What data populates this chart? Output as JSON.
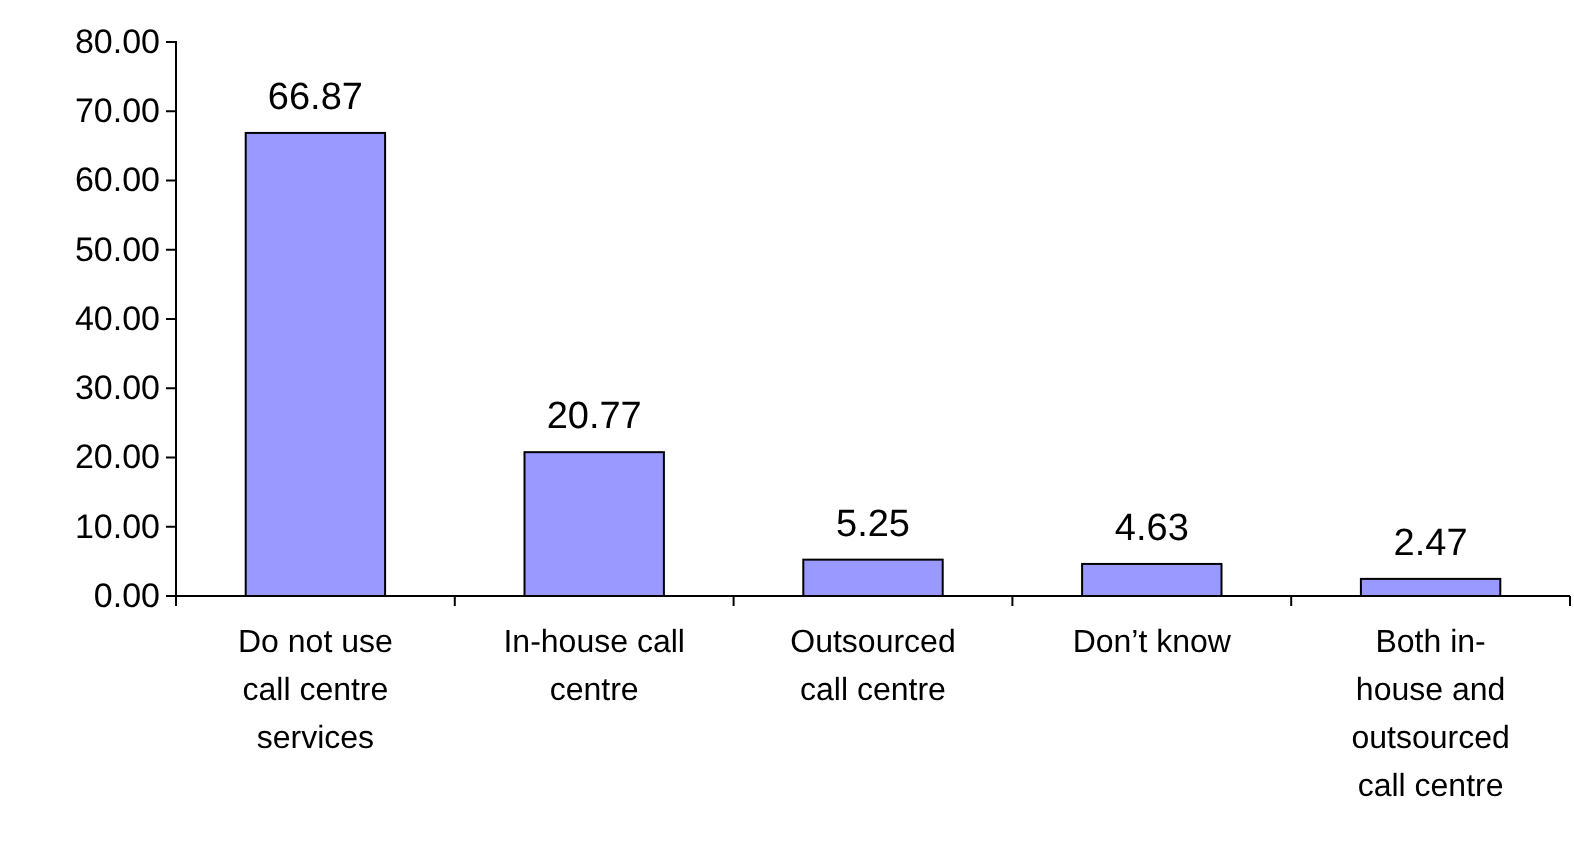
{
  "chart_data": {
    "type": "bar",
    "categories": [
      "Do not use call centre services",
      "In-house call centre",
      "Outsourced call centre",
      "Don’t know",
      "Both in-house and outsourced call centre"
    ],
    "values": [
      66.87,
      20.77,
      5.25,
      4.63,
      2.47
    ],
    "color": "#9999ff",
    "ylim": [
      0,
      80
    ],
    "yticks": [
      {
        "value": 0,
        "label": "0.00"
      },
      {
        "value": 10,
        "label": "10.00"
      },
      {
        "value": 20,
        "label": "20.00"
      },
      {
        "value": 30,
        "label": "30.00"
      },
      {
        "value": 40,
        "label": "40.00"
      },
      {
        "value": 50,
        "label": "50.00"
      },
      {
        "value": 60,
        "label": "60.00"
      },
      {
        "value": 70,
        "label": "70.00"
      },
      {
        "value": 80,
        "label": "80.00"
      }
    ],
    "data_labels": true
  }
}
